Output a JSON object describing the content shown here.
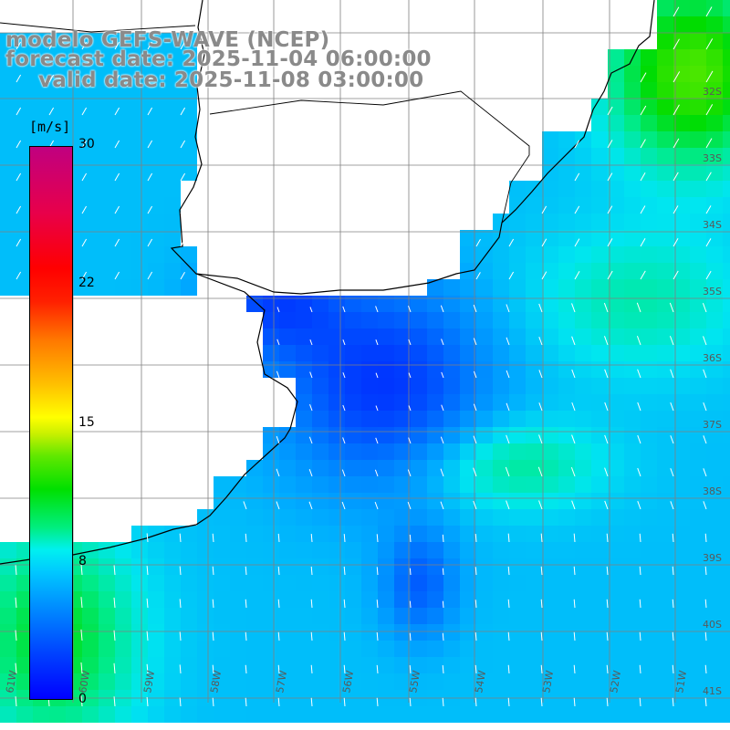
{
  "title": {
    "line1": "modelo GEFS-WAVE (NCEP)",
    "line2": "forecast date: 2025-11-04 06:00:00",
    "line3": "valid date: 2025-11-08 03:00:00"
  },
  "colorbar": {
    "unit": "[m/s]",
    "ticks": [
      "30",
      "22",
      "15",
      "8",
      "0"
    ],
    "tick_values": [
      30,
      22,
      15,
      8,
      0
    ],
    "range": [
      0,
      30
    ],
    "colors": [
      "#0000ff",
      "#0090ff",
      "#00f0f0",
      "#00e000",
      "#ffff00",
      "#ff7800",
      "#ff0000",
      "#c00080"
    ]
  },
  "latitude_labels": [
    "32S",
    "33S",
    "34S",
    "35S",
    "36S",
    "37S",
    "38S",
    "39S",
    "40S",
    "41S"
  ],
  "longitude_labels": [
    "61W",
    "60W",
    "59W",
    "58W",
    "57W",
    "56W",
    "55W",
    "54W",
    "53W",
    "52W",
    "51W"
  ],
  "colors": {
    "land": "#ffffff",
    "coastline": "#000000",
    "grid": "#808080",
    "arrow": "#ffffff",
    "title_text": "#8a8a8a"
  },
  "icons": {
    "wind_arrow": "wind-vector-arrow"
  }
}
